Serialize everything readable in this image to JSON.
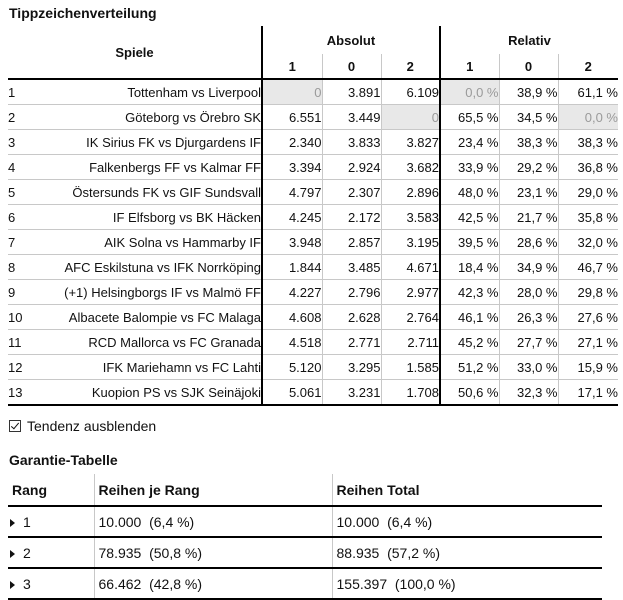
{
  "title": "Tippzeichenverteilung",
  "header": {
    "spiele": "Spiele",
    "absolut": "Absolut",
    "relativ": "Relativ",
    "cols": [
      "1",
      "0",
      "2"
    ]
  },
  "rows": [
    {
      "nr": "1",
      "game": "Tottenham vs Liverpool",
      "abs": [
        "0",
        "3.891",
        "6.109"
      ],
      "rel": [
        "0,0 %",
        "38,9 %",
        "61,1 %"
      ]
    },
    {
      "nr": "2",
      "game": "Göteborg vs Örebro SK",
      "abs": [
        "6.551",
        "3.449",
        "0"
      ],
      "rel": [
        "65,5 %",
        "34,5 %",
        "0,0 %"
      ]
    },
    {
      "nr": "3",
      "game": "IK Sirius FK vs Djurgardens IF",
      "abs": [
        "2.340",
        "3.833",
        "3.827"
      ],
      "rel": [
        "23,4 %",
        "38,3 %",
        "38,3 %"
      ]
    },
    {
      "nr": "4",
      "game": "Falkenbergs FF vs Kalmar FF",
      "abs": [
        "3.394",
        "2.924",
        "3.682"
      ],
      "rel": [
        "33,9 %",
        "29,2 %",
        "36,8 %"
      ]
    },
    {
      "nr": "5",
      "game": "Östersunds FK vs GIF Sundsvall",
      "abs": [
        "4.797",
        "2.307",
        "2.896"
      ],
      "rel": [
        "48,0 %",
        "23,1 %",
        "29,0 %"
      ]
    },
    {
      "nr": "6",
      "game": "IF Elfsborg vs BK Häcken",
      "abs": [
        "4.245",
        "2.172",
        "3.583"
      ],
      "rel": [
        "42,5 %",
        "21,7 %",
        "35,8 %"
      ]
    },
    {
      "nr": "7",
      "game": "AIK Solna vs Hammarby IF",
      "abs": [
        "3.948",
        "2.857",
        "3.195"
      ],
      "rel": [
        "39,5 %",
        "28,6 %",
        "32,0 %"
      ]
    },
    {
      "nr": "8",
      "game": "AFC Eskilstuna vs IFK Norrköping",
      "abs": [
        "1.844",
        "3.485",
        "4.671"
      ],
      "rel": [
        "18,4 %",
        "34,9 %",
        "46,7 %"
      ]
    },
    {
      "nr": "9",
      "game": "(+1) Helsingborgs IF vs Malmö FF",
      "abs": [
        "4.227",
        "2.796",
        "2.977"
      ],
      "rel": [
        "42,3 %",
        "28,0 %",
        "29,8 %"
      ]
    },
    {
      "nr": "10",
      "game": "Albacete Balompie vs FC Malaga",
      "abs": [
        "4.608",
        "2.628",
        "2.764"
      ],
      "rel": [
        "46,1 %",
        "26,3 %",
        "27,6 %"
      ]
    },
    {
      "nr": "11",
      "game": "RCD Mallorca vs FC Granada",
      "abs": [
        "4.518",
        "2.771",
        "2.711"
      ],
      "rel": [
        "45,2 %",
        "27,7 %",
        "27,1 %"
      ]
    },
    {
      "nr": "12",
      "game": "IFK Mariehamn vs FC Lahti",
      "abs": [
        "5.120",
        "3.295",
        "1.585"
      ],
      "rel": [
        "51,2 %",
        "33,0 %",
        "15,9 %"
      ]
    },
    {
      "nr": "13",
      "game": "Kuopion PS vs SJK Seinäjoki",
      "abs": [
        "5.061",
        "3.231",
        "1.708"
      ],
      "rel": [
        "50,6 %",
        "32,3 %",
        "17,1 %"
      ]
    }
  ],
  "tendenz": {
    "label": "Tendenz ausblenden",
    "checked": true
  },
  "garantie": {
    "title": "Garantie-Tabelle",
    "headers": [
      "Rang",
      "Reihen je Rang",
      "Reihen Total"
    ],
    "rows": [
      {
        "rang": "1",
        "je_rang": "10.000  (6,4 %)",
        "total": "10.000  (6,4 %)"
      },
      {
        "rang": "2",
        "je_rang": "78.935  (50,8 %)",
        "total": "88.935  (57,2 %)"
      },
      {
        "rang": "3",
        "je_rang": "66.462  (42,8 %)",
        "total": "155.397  (100,0 %)"
      }
    ]
  }
}
